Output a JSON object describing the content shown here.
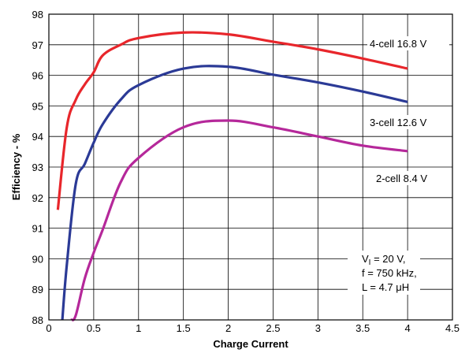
{
  "chart_data": {
    "type": "line",
    "title": "",
    "xlabel": "Charge Current",
    "ylabel": "Efficiency - %",
    "xlim": [
      0,
      4.5
    ],
    "ylim": [
      88,
      98
    ],
    "xticks": [
      "0",
      "0.5",
      "1",
      "1.5",
      "2",
      "2.5",
      "3",
      "3.5",
      "4",
      "4.5"
    ],
    "yticks": [
      "88",
      "89",
      "90",
      "91",
      "92",
      "93",
      "94",
      "95",
      "96",
      "97",
      "98"
    ],
    "grid": true,
    "series": [
      {
        "name": "4-cell 16.8 V",
        "color": "#e8262b",
        "x": [
          0.1,
          0.2,
          0.3,
          0.4,
          0.5,
          0.6,
          0.8,
          1.0,
          1.5,
          2.0,
          2.5,
          3.0,
          3.5,
          4.0
        ],
        "y": [
          91.6,
          94.3,
          95.2,
          95.7,
          96.1,
          96.65,
          97.0,
          97.22,
          97.4,
          97.34,
          97.1,
          96.85,
          96.55,
          96.22
        ]
      },
      {
        "name": "3-cell 12.6 V",
        "color": "#2b3a96",
        "x": [
          0.15,
          0.2,
          0.3,
          0.4,
          0.5,
          0.6,
          0.8,
          1.0,
          1.5,
          2.0,
          2.5,
          3.0,
          3.5,
          4.0
        ],
        "y": [
          88.0,
          89.8,
          92.45,
          93.1,
          93.8,
          94.4,
          95.2,
          95.68,
          96.22,
          96.28,
          96.02,
          95.77,
          95.47,
          95.13
        ]
      },
      {
        "name": "2-cell 8.4 V",
        "color": "#b5289a",
        "x": [
          0.25,
          0.3,
          0.4,
          0.5,
          0.6,
          0.8,
          1.0,
          1.5,
          2.0,
          2.5,
          3.0,
          3.5,
          4.0
        ],
        "y": [
          88.0,
          88.15,
          89.35,
          90.2,
          90.95,
          92.5,
          93.3,
          94.3,
          94.52,
          94.3,
          94.0,
          93.7,
          93.52
        ]
      }
    ],
    "series_labels": [
      "4-cell 16.8 V",
      "3-cell 12.6 V",
      "2-cell 8.4 V"
    ],
    "annotation": {
      "line1_main": "V",
      "line1_sub": "I",
      "line1_rest": " = 20 V,",
      "line2": "f = 750 kHz,",
      "line3": "L = 4.7 μH"
    }
  }
}
